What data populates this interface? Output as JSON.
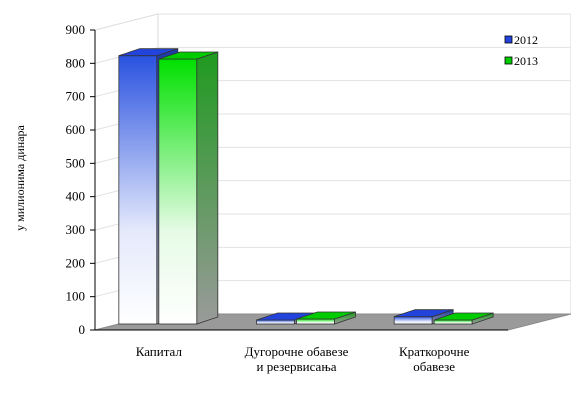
{
  "chart_data": {
    "type": "bar",
    "categories": [
      [
        "Капитал"
      ],
      [
        "Дугорочне обавезе",
        "и резервисања"
      ],
      [
        "Краткорочне",
        "обавезе"
      ]
    ],
    "series": [
      {
        "name": "2012",
        "values": [
          805,
          12,
          22
        ],
        "color": "#2244dd"
      },
      {
        "name": "2013",
        "values": [
          795,
          15,
          12
        ],
        "color": "#00cc00"
      }
    ],
    "ylabel": "у милионима динара",
    "ylim": [
      0,
      900
    ],
    "yticks": [
      0,
      100,
      200,
      300,
      400,
      500,
      600,
      700,
      800,
      900
    ],
    "grid": true,
    "three_d": true,
    "legend": "top-right"
  }
}
